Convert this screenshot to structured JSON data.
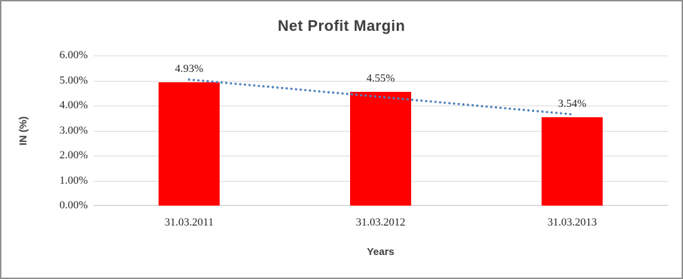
{
  "chart_data": {
    "type": "bar",
    "title": "Net Profit Margin",
    "xlabel": "Years",
    "ylabel": "IN (%)",
    "categories": [
      "31.03.2011",
      "31.03.2012",
      "31.03.2013"
    ],
    "series": [
      {
        "name": "Net Profit Margin",
        "values": [
          4.93,
          4.55,
          3.54
        ]
      }
    ],
    "data_labels": [
      "4.93%",
      "4.55%",
      "3.54%"
    ],
    "ylim": [
      0,
      6
    ],
    "ytick_labels": [
      "0.00%",
      "1.00%",
      "2.00%",
      "3.00%",
      "4.00%",
      "5.00%",
      "6.00%"
    ],
    "grid": true,
    "legend": "none",
    "bar_color": "#ff0000",
    "trendline": {
      "type": "linear",
      "style": "dotted",
      "color": "#4f81bd",
      "endpoint_values": [
        5.04,
        3.65
      ]
    }
  }
}
